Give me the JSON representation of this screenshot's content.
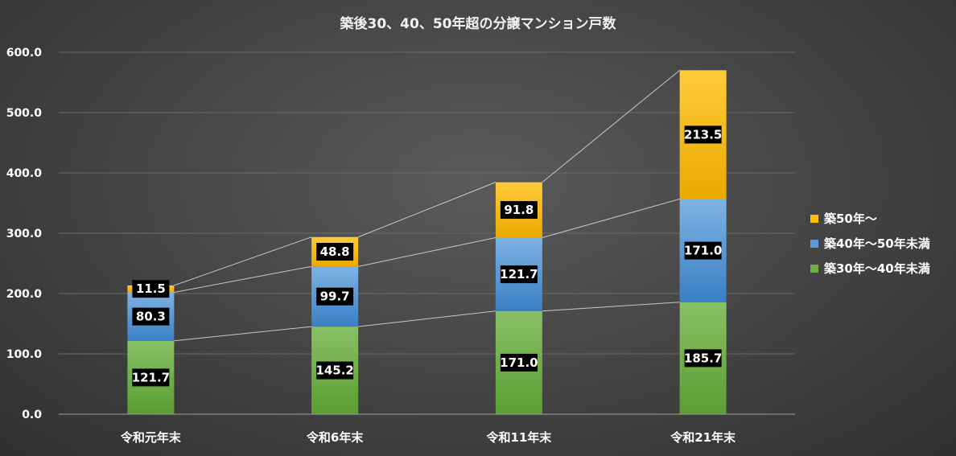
{
  "chart_data": {
    "type": "bar",
    "stacked": true,
    "title": "築後30、40、50年超の分譲マンション戸数",
    "categories": [
      "令和元年末",
      "令和6年末",
      "令和11年末",
      "令和21年末"
    ],
    "series": [
      {
        "name": "築30年～40年未満",
        "color": "#70ad47",
        "values": [
          121.7,
          145.2,
          171.0,
          185.7
        ]
      },
      {
        "name": "築40年～50年未満",
        "color": "#5b9bd5",
        "values": [
          80.3,
          99.7,
          121.7,
          171.0
        ]
      },
      {
        "name": "築50年～",
        "color": "#ffc000",
        "values": [
          11.5,
          48.8,
          91.8,
          213.5
        ]
      }
    ],
    "ylim": [
      0,
      600
    ],
    "yticks": [
      "0.0",
      "100.0",
      "200.0",
      "300.0",
      "400.0",
      "500.0",
      "600.0"
    ],
    "legend_order": [
      "築50年～",
      "築40年～50年未満",
      "築30年～40年未満"
    ],
    "legend_position": "right",
    "grid": true,
    "series_lines": true
  }
}
